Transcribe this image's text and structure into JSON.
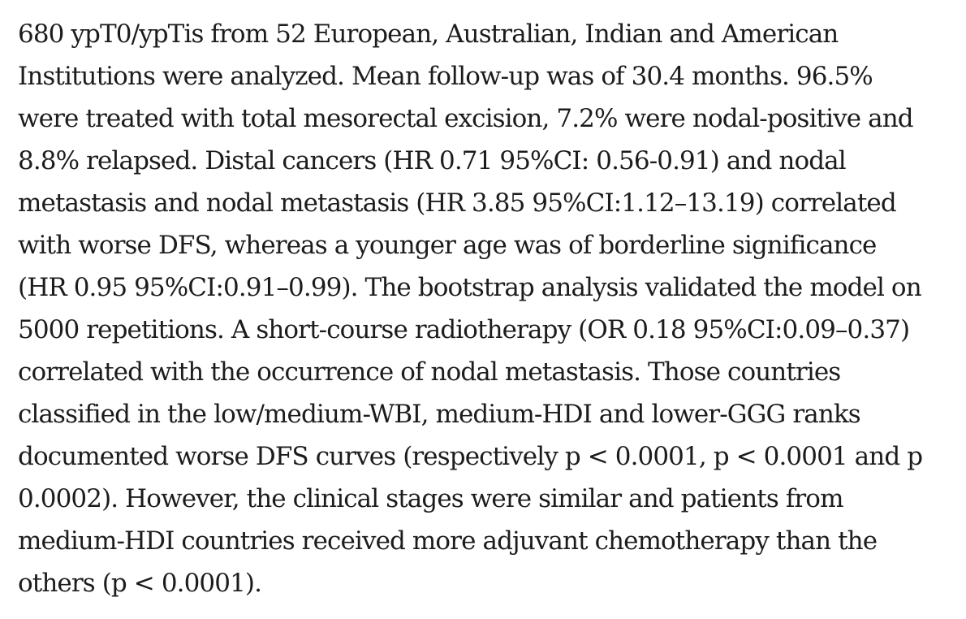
{
  "abstract": {
    "lines": [
      "680 ypT0/ypTis from 52 European, Australian, Indian and American",
      "Institutions were analyzed. Mean follow-up was of 30.4 months. 96.5%",
      "were treated with total mesorectal excision, 7.2% were nodal-positive and",
      "8.8% relapsed. Distal cancers (HR 0.71 95%CI: 0.56-0.91) and nodal",
      "metastasis and nodal metastasis (HR 3.85 95%CI:1.12–13.19) correlated",
      "with worse DFS, whereas a younger age was of borderline significance",
      "(HR 0.95 95%CI:0.91–0.99). The bootstrap analysis validated the model on",
      "5000 repetitions. A short-course radiotherapy (OR 0.18 95%CI:0.09–0.37)",
      "correlated with the occurrence of nodal metastasis. Those countries",
      "classified in the low/medium-WBI, medium-HDI and lower-GGG ranks",
      "documented worse DFS curves (respectively p < 0.0001, p < 0.0001 and p",
      "0.0002). However, the clinical stages were similar and patients from",
      "medium-HDI countries received more adjuvant chemotherapy than the",
      "others (p < 0.0001)."
    ]
  }
}
